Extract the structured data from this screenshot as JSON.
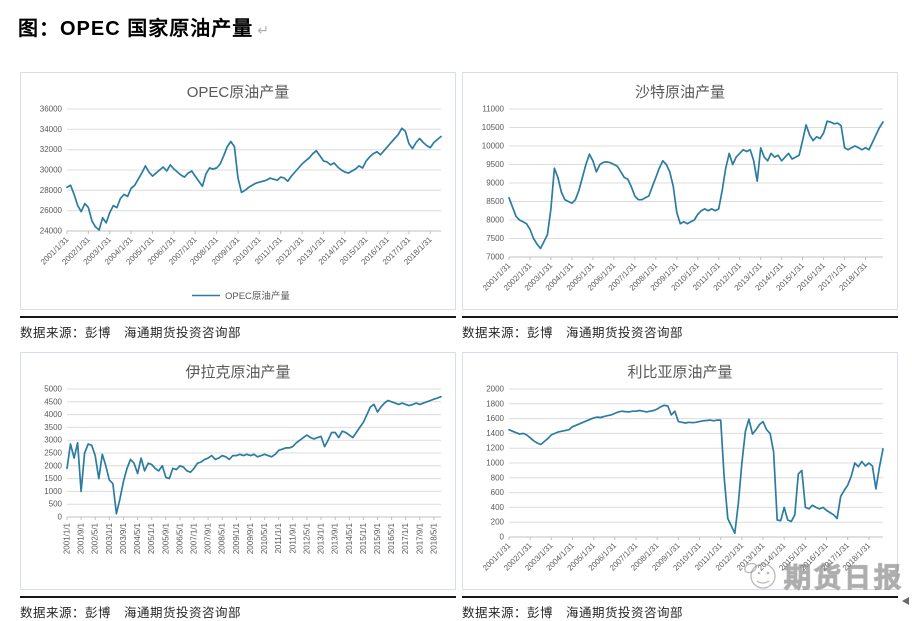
{
  "page": {
    "title": "图：OPEC 国家原油产量",
    "return_mark": "↵"
  },
  "source_note": "数据来源：彭博　海通期货投资咨询部",
  "watermark": {
    "text": "期货日报",
    "mascot_icon": "mascot-doodle"
  },
  "colors": {
    "line": "#2b7ca1",
    "grid": "#dcdcda",
    "axis": "#c0c0c0",
    "tick_text": "#595959",
    "divider": "#161616"
  },
  "chart_data": [
    {
      "type": "line",
      "title": "OPEC原油产量",
      "legend": [
        "OPEC原油产量"
      ],
      "legend_position": "bottom",
      "grid": true,
      "line_color": "#2b7ca1",
      "ylim": [
        24000,
        36000
      ],
      "ystep": 2000,
      "x_label_rotation": -45,
      "x_label_step": 12,
      "x_labels": [
        "2001/1/31",
        "2002/1/31",
        "2003/1/31",
        "2004/1/31",
        "2005/1/31",
        "2006/1/31",
        "2007/1/31",
        "2008/1/31",
        "2009/1/31",
        "2010/1/31",
        "2011/1/31",
        "2012/1/31",
        "2013/1/31",
        "2014/1/31",
        "2015/1/31",
        "2016/1/31",
        "2017/1/31",
        "2018/1/31"
      ],
      "values": [
        28300,
        28500,
        27600,
        26500,
        25900,
        26700,
        26300,
        25000,
        24400,
        24100,
        25300,
        24800,
        25800,
        26500,
        26300,
        27200,
        27600,
        27400,
        28200,
        28500,
        29100,
        29700,
        30400,
        29800,
        29400,
        29700,
        30000,
        30300,
        29900,
        30500,
        30100,
        29800,
        29500,
        29300,
        29700,
        29900,
        29400,
        28900,
        28400,
        29600,
        30200,
        30100,
        30200,
        30600,
        31400,
        32300,
        32800,
        32300,
        29200,
        27800,
        28000,
        28300,
        28500,
        28700,
        28800,
        28900,
        29000,
        29200,
        29100,
        29000,
        29300,
        29200,
        28900,
        29400,
        29800,
        30200,
        30600,
        30900,
        31200,
        31600,
        31900,
        31400,
        30900,
        30800,
        30500,
        30700,
        30300,
        30000,
        29800,
        29700,
        29900,
        30100,
        30400,
        30200,
        30900,
        31300,
        31600,
        31800,
        31500,
        31900,
        32300,
        32700,
        33100,
        33500,
        34100,
        33800,
        32600,
        32100,
        32700,
        33100,
        32700,
        32400,
        32200,
        32700,
        33000,
        33300
      ]
    },
    {
      "type": "line",
      "title": "沙特原油产量",
      "legend": null,
      "grid": true,
      "line_color": "#2b7ca1",
      "ylim": [
        7000,
        11000
      ],
      "ystep": 500,
      "x_label_rotation": -45,
      "x_label_step": 12,
      "x_labels": [
        "2001/1/31",
        "2002/1/31",
        "2003/1/31",
        "2004/1/31",
        "2005/1/31",
        "2006/1/31",
        "2007/1/31",
        "2008/1/31",
        "2009/1/31",
        "2010/1/31",
        "2011/1/31",
        "2012/1/31",
        "2013/1/31",
        "2014/1/31",
        "2015/1/31",
        "2016/1/31",
        "2017/1/31",
        "2018/1/31"
      ],
      "values": [
        8600,
        8350,
        8100,
        8000,
        7950,
        7900,
        7750,
        7500,
        7350,
        7230,
        7420,
        7600,
        8300,
        9400,
        9150,
        8750,
        8550,
        8500,
        8450,
        8550,
        8800,
        9150,
        9500,
        9780,
        9600,
        9300,
        9500,
        9560,
        9570,
        9550,
        9500,
        9450,
        9300,
        9150,
        9100,
        8900,
        8650,
        8550,
        8550,
        8600,
        8650,
        8900,
        9150,
        9400,
        9600,
        9500,
        9300,
        8900,
        8200,
        7900,
        7950,
        7900,
        7950,
        8000,
        8150,
        8250,
        8300,
        8250,
        8300,
        8250,
        8300,
        8800,
        9400,
        9800,
        9500,
        9700,
        9800,
        9900,
        9850,
        9900,
        9600,
        9050,
        9950,
        9700,
        9600,
        9800,
        9700,
        9750,
        9600,
        9700,
        9800,
        9650,
        9700,
        9750,
        10150,
        10570,
        10300,
        10150,
        10250,
        10200,
        10350,
        10670,
        10650,
        10600,
        10620,
        10550,
        9950,
        9900,
        9950,
        10000,
        9950,
        9900,
        9950,
        9900,
        10100,
        10300,
        10500,
        10650
      ]
    },
    {
      "type": "line",
      "title": "伊拉克原油产量",
      "legend": null,
      "grid": true,
      "line_color": "#2b7ca1",
      "ylim": [
        0,
        5000
      ],
      "ystep": 500,
      "x_label_rotation": -90,
      "x_label_step": 8,
      "x_labels": [
        "2001/1/1",
        "2001/9/1",
        "2002/5/1",
        "2003/1/1",
        "2003/9/1",
        "2004/5/1",
        "2005/1/1",
        "2005/9/1",
        "2006/5/1",
        "2007/1/1",
        "2007/9/1",
        "2008/5/1",
        "2009/1/1",
        "2009/9/1",
        "2010/5/1",
        "2011/1/1",
        "2011/9/1",
        "2012/5/1",
        "2013/1/1",
        "2013/9/1",
        "2014/5/1",
        "2015/1/1",
        "2015/9/1",
        "2016/5/1",
        "2017/1/1",
        "2017/9/1",
        "2018/5/1"
      ],
      "values": [
        1900,
        2850,
        2300,
        2900,
        1000,
        2500,
        2850,
        2800,
        2400,
        1500,
        2450,
        2000,
        1450,
        1300,
        130,
        700,
        1400,
        1900,
        2250,
        2100,
        1700,
        2300,
        1800,
        2100,
        2050,
        1900,
        1800,
        2000,
        1550,
        1500,
        1900,
        1850,
        2000,
        1950,
        1800,
        1750,
        1900,
        2100,
        2150,
        2250,
        2300,
        2400,
        2250,
        2300,
        2400,
        2350,
        2250,
        2400,
        2400,
        2450,
        2400,
        2450,
        2400,
        2450,
        2350,
        2400,
        2450,
        2400,
        2350,
        2450,
        2600,
        2650,
        2700,
        2700,
        2750,
        2900,
        3000,
        3100,
        3200,
        3100,
        3050,
        3100,
        3150,
        2750,
        3000,
        3300,
        3300,
        3100,
        3350,
        3300,
        3200,
        3100,
        3300,
        3500,
        3700,
        4000,
        4300,
        4400,
        4100,
        4300,
        4450,
        4550,
        4500,
        4450,
        4400,
        4450,
        4400,
        4350,
        4400,
        4450,
        4400,
        4450,
        4500,
        4550,
        4600,
        4650,
        4700
      ]
    },
    {
      "type": "line",
      "title": "利比亚原油产量",
      "legend": null,
      "grid": true,
      "line_color": "#2b7ca1",
      "ylim": [
        0,
        2000
      ],
      "ystep": 200,
      "x_label_rotation": -45,
      "x_label_step": 12,
      "x_labels": [
        "2001/1/31",
        "2002/1/31",
        "2003/1/31",
        "2004/1/31",
        "2005/1/31",
        "2006/1/31",
        "2007/1/31",
        "2008/1/31",
        "2009/1/31",
        "2010/1/31",
        "2011/1/31",
        "2012/1/31",
        "2013/1/31",
        "2014/1/31",
        "2015/1/31",
        "2016/1/31",
        "2017/1/31",
        "2018/1/31"
      ],
      "values": [
        1450,
        1430,
        1410,
        1390,
        1400,
        1380,
        1340,
        1300,
        1270,
        1250,
        1290,
        1330,
        1380,
        1400,
        1420,
        1430,
        1440,
        1450,
        1490,
        1510,
        1530,
        1550,
        1570,
        1590,
        1610,
        1620,
        1615,
        1630,
        1640,
        1650,
        1670,
        1690,
        1700,
        1695,
        1690,
        1700,
        1700,
        1710,
        1700,
        1690,
        1700,
        1710,
        1730,
        1760,
        1780,
        1770,
        1650,
        1700,
        1560,
        1550,
        1540,
        1550,
        1545,
        1550,
        1560,
        1570,
        1575,
        1580,
        1570,
        1580,
        1580,
        800,
        250,
        150,
        50,
        450,
        1000,
        1430,
        1590,
        1390,
        1450,
        1520,
        1560,
        1450,
        1400,
        1150,
        230,
        220,
        400,
        230,
        210,
        300,
        850,
        900,
        400,
        380,
        430,
        400,
        380,
        400,
        360,
        330,
        300,
        250,
        550,
        630,
        700,
        820,
        1000,
        950,
        1020,
        960,
        1000,
        960,
        650,
        950,
        1190
      ]
    }
  ]
}
